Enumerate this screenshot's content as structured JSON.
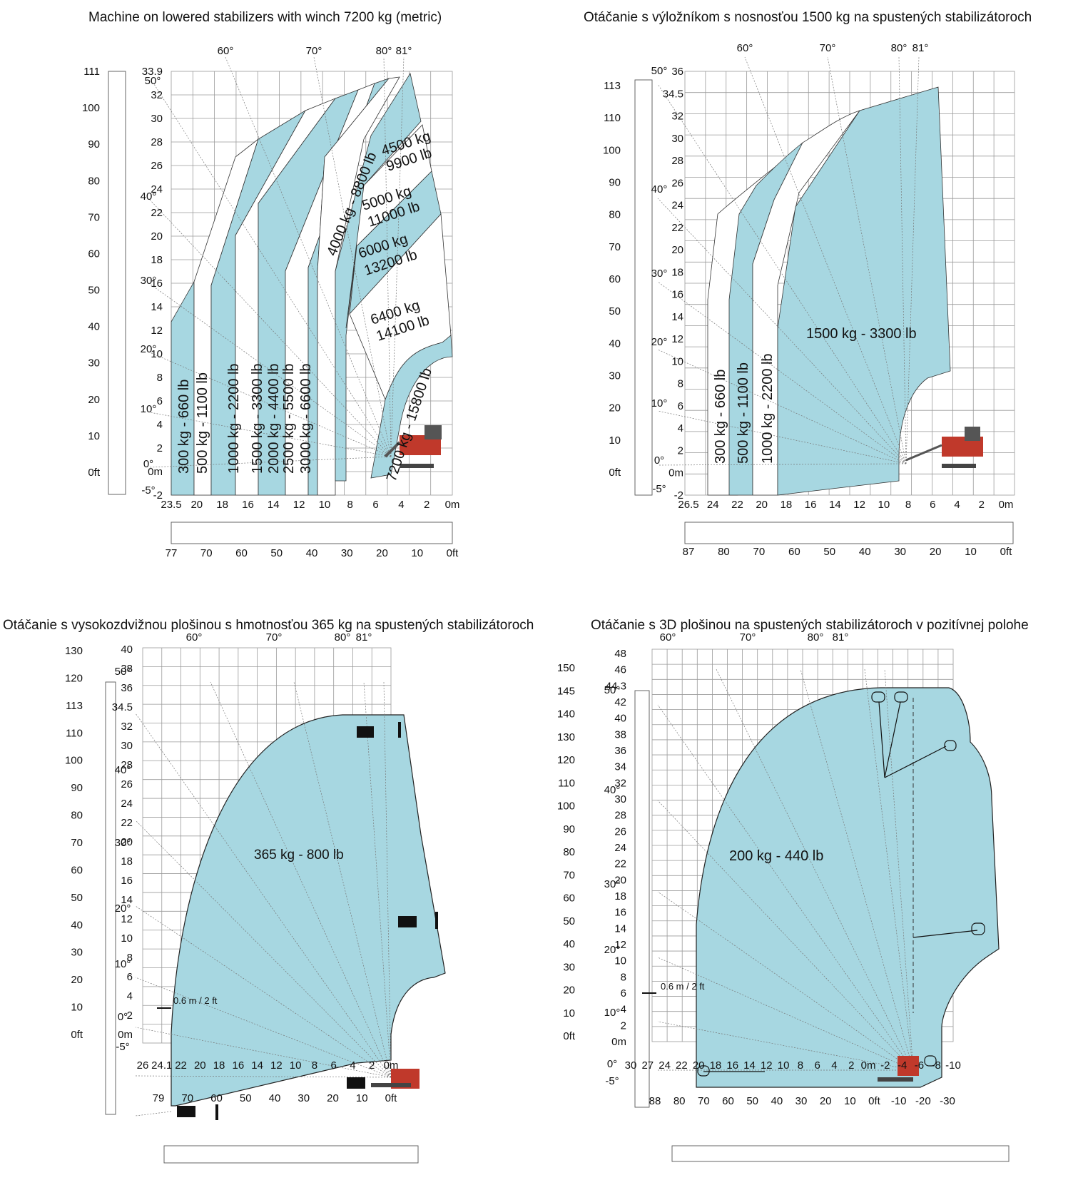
{
  "colors": {
    "zone": "#a7d7e1",
    "grid": "#9a9a9a",
    "machine": "#c0392b"
  },
  "chart_data": [
    {
      "type": "area",
      "title": "Machine on lowered stabilizers with winch 7200 kg (metric)",
      "y_m_ticks": [
        "33.9",
        "32",
        "30",
        "28",
        "26",
        "24",
        "22",
        "20",
        "18",
        "16",
        "14",
        "12",
        "10",
        "8",
        "6",
        "4",
        "2",
        "0m",
        "-2"
      ],
      "y_ft_ticks": [
        "111",
        "100",
        "90",
        "80",
        "70",
        "60",
        "50",
        "40",
        "30",
        "20",
        "10",
        "0ft"
      ],
      "angle_labels": [
        "60°",
        "70°",
        "80°",
        "81°",
        "50°",
        "40°",
        "30°",
        "20°",
        "10°",
        "0°",
        "-5°"
      ],
      "x_m_ticks": [
        "23.5",
        "20",
        "18",
        "16",
        "14",
        "12",
        "10",
        "8",
        "6",
        "4",
        "2",
        "0m"
      ],
      "x_ft_ticks": [
        "77",
        "70",
        "60",
        "50",
        "40",
        "30",
        "20",
        "10",
        "0ft"
      ],
      "zones": [
        "300 kg - 660 lb",
        "500 kg - 1100 lb",
        "1000 kg - 2200 lb",
        "1500 kg - 3300 lb",
        "2000 kg - 4400 lb",
        "2500 kg - 5500 lb",
        "3000 kg - 6600 lb",
        "4000 kg - 8800 lb",
        "4500 kg",
        "9900 lb",
        "5000 kg",
        "11000 lb",
        "6000 kg",
        "13200 lb",
        "6400 kg",
        "14100 lb",
        "7200 kg - 15800 lb"
      ]
    },
    {
      "type": "area",
      "title": "Otáčanie s výložníkom s nosnosťou 1500 kg na spustených stabilizátoroch",
      "y_m_ticks": [
        "36",
        "34.5",
        "32",
        "30",
        "28",
        "26",
        "24",
        "22",
        "20",
        "18",
        "16",
        "14",
        "12",
        "10",
        "8",
        "6",
        "4",
        "2",
        "0m",
        "-2"
      ],
      "y_ft_ticks": [
        "113",
        "110",
        "100",
        "90",
        "80",
        "70",
        "60",
        "50",
        "40",
        "30",
        "20",
        "10",
        "0ft"
      ],
      "angle_labels": [
        "60°",
        "70°",
        "80°",
        "81°",
        "50°",
        "40°",
        "30°",
        "20°",
        "10°",
        "0°",
        "-5°"
      ],
      "x_m_ticks": [
        "26.5",
        "24",
        "22",
        "20",
        "18",
        "16",
        "14",
        "12",
        "10",
        "8",
        "6",
        "4",
        "2",
        "0m"
      ],
      "x_ft_ticks": [
        "87",
        "80",
        "70",
        "60",
        "50",
        "40",
        "30",
        "20",
        "10",
        "0ft"
      ],
      "zones": [
        "300 kg - 660 lb",
        "500 kg - 1100 lb",
        "1000 kg - 2200 lb",
        "1500 kg - 3300 lb"
      ]
    },
    {
      "type": "area",
      "title": "Otáčanie s vysokozdvižnou plošinou s hmotnosťou 365 kg na spustených stabilizátoroch",
      "y_m_ticks": [
        "40",
        "38",
        "36",
        "34.5",
        "32",
        "30",
        "28",
        "26",
        "24",
        "22",
        "20",
        "18",
        "16",
        "14",
        "12",
        "10",
        "8",
        "6",
        "4",
        "2",
        "0m"
      ],
      "y_ft_ticks": [
        "130",
        "120",
        "113",
        "110",
        "100",
        "90",
        "80",
        "70",
        "60",
        "50",
        "40",
        "30",
        "20",
        "10",
        "0ft"
      ],
      "angle_labels": [
        "60°",
        "70°",
        "80°",
        "81°",
        "50°",
        "40°",
        "30°",
        "20°",
        "10°",
        "0°",
        "-5°"
      ],
      "x_m_ticks": [
        "26",
        "24.1",
        "22",
        "20",
        "18",
        "16",
        "14",
        "12",
        "10",
        "8",
        "6",
        "4",
        "2",
        "0m"
      ],
      "x_ft_ticks": [
        "79",
        "70",
        "60",
        "50",
        "40",
        "30",
        "20",
        "10",
        "0ft"
      ],
      "offset_label": "0.6 m / 2 ft",
      "zones": [
        "365 kg - 800 lb"
      ]
    },
    {
      "type": "area",
      "title": "Otáčanie s 3D plošinou na spustených stabilizátoroch v pozitívnej polohe",
      "y_m_ticks": [
        "48",
        "46",
        "44.3",
        "42",
        "40",
        "38",
        "36",
        "34",
        "32",
        "30",
        "28",
        "26",
        "24",
        "22",
        "20",
        "18",
        "16",
        "14",
        "12",
        "10",
        "8",
        "6",
        "4",
        "2",
        "0m"
      ],
      "y_ft_ticks": [
        "150",
        "145",
        "140",
        "130",
        "120",
        "110",
        "100",
        "90",
        "80",
        "70",
        "60",
        "50",
        "40",
        "30",
        "20",
        "10",
        "0ft"
      ],
      "angle_labels": [
        "60°",
        "70°",
        "80°",
        "81°",
        "50°",
        "40°",
        "30°",
        "20°",
        "10°",
        "0°",
        "-5°"
      ],
      "x_m_ticks": [
        "30",
        "27",
        "24",
        "22",
        "20",
        "18",
        "16",
        "14",
        "12",
        "10",
        "8",
        "6",
        "4",
        "2",
        "0m",
        "-2",
        "-4",
        "-6",
        "-8",
        "-10"
      ],
      "x_ft_ticks": [
        "88",
        "80",
        "70",
        "60",
        "50",
        "40",
        "30",
        "20",
        "10",
        "0ft",
        "-10",
        "-20",
        "-30"
      ],
      "offset_label": "0.6 m / 2 ft",
      "zones": [
        "200 kg - 440 lb"
      ]
    }
  ]
}
